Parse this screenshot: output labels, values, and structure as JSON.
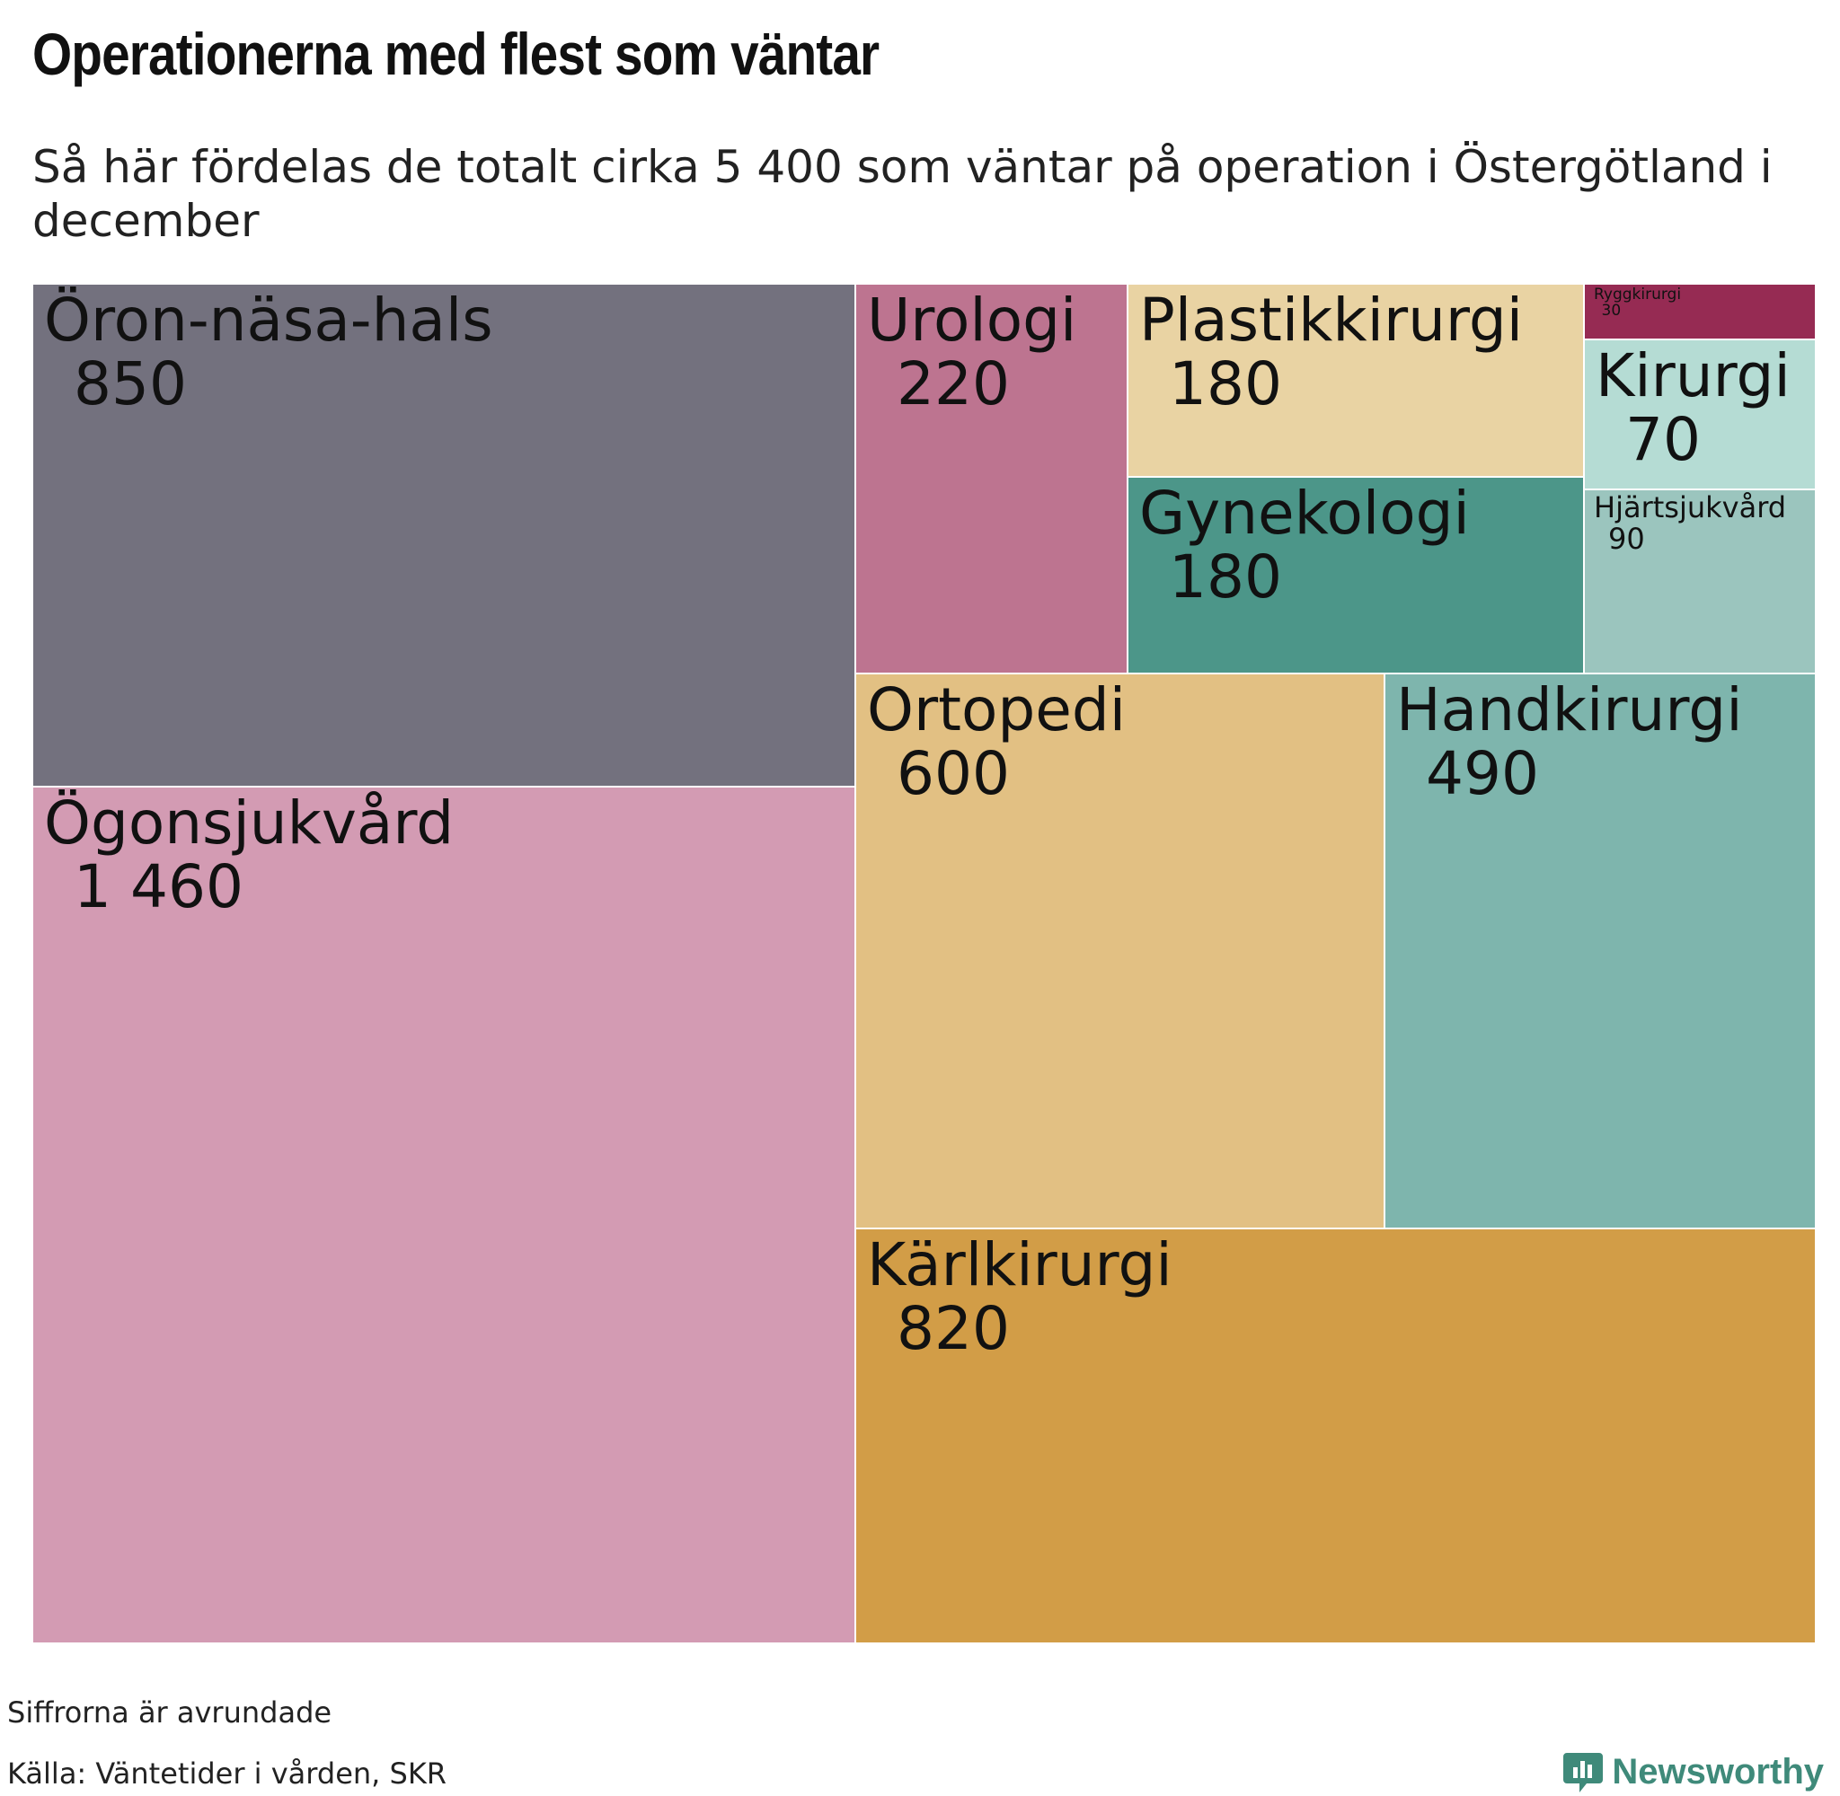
{
  "title": "Operationerna med flest som väntar",
  "subtitle": "Så här fördelas de totalt cirka 5 400 som väntar på operation i Östergötland i december",
  "notes": {
    "rounding": "Siffrorna är avrundade",
    "source": "Källa: Väntetider i vården, SKR"
  },
  "brand": "Newsworthy",
  "colors": {
    "brand": "#3f8a7a"
  },
  "chart_data": {
    "type": "treemap",
    "title": "Operationerna med flest som väntar",
    "items": [
      {
        "name": "Ögonsjukvård",
        "label": "1 460",
        "value": 1460,
        "color": "#d39bb3"
      },
      {
        "name": "Öron-näsa-hals",
        "label": "850",
        "value": 850,
        "color": "#73717e"
      },
      {
        "name": "Kärlkirurgi",
        "label": "820",
        "value": 820,
        "color": "#d29d47"
      },
      {
        "name": "Ortopedi",
        "label": "600",
        "value": 600,
        "color": "#e2c083"
      },
      {
        "name": "Handkirurgi",
        "label": "490",
        "value": 490,
        "color": "#7eb5ad"
      },
      {
        "name": "Urologi",
        "label": "220",
        "value": 220,
        "color": "#bd7490"
      },
      {
        "name": "Plastikkirurgi",
        "label": "180",
        "value": 180,
        "color": "#e9d3a3"
      },
      {
        "name": "Gynekologi",
        "label": "180",
        "value": 180,
        "color": "#4c9689"
      },
      {
        "name": "Hjärtsjukvård",
        "label": "90",
        "value": 90,
        "color": "#9bc5be"
      },
      {
        "name": "Kirurgi",
        "label": "70",
        "value": 70,
        "color": "#b5dcd4"
      },
      {
        "name": "Ryggkirurgi",
        "label": "30",
        "value": 30,
        "color": "#962b53"
      }
    ]
  }
}
